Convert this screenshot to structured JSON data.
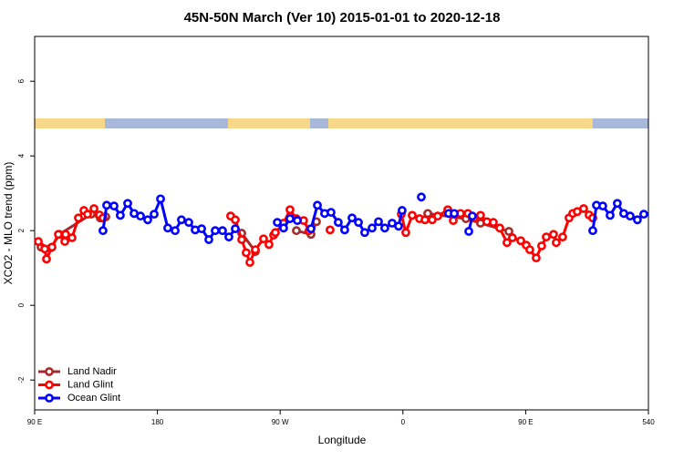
{
  "chart_data": {
    "type": "line",
    "title": "45N-50N March (Ver 10)   2015-01-01 to 2020-12-18",
    "x_label": "Longitude",
    "y_label": "XCO2 - MLO trend (ppm)",
    "xlim": [
      90,
      540
    ],
    "ylim": [
      -2.8,
      7.2
    ],
    "xticks": [
      {
        "value": 90,
        "label": "90 E"
      },
      180,
      {
        "value": 270,
        "label": "90 W"
      },
      {
        "value": 360,
        "label": "0"
      },
      {
        "value": 450,
        "label": "90 E"
      },
      540
    ],
    "yticks": [
      -2,
      0,
      2,
      4,
      6
    ],
    "legend": "bottom-left",
    "series": [
      {
        "name": "Land Nadir",
        "color": "#a52a2a",
        "x": [
          94.7,
          102.0,
          108.1,
          131.5,
          138.1,
          142.2,
          null,
          241.8,
          251.8,
          null,
          281.9,
          292.6,
          296.6,
          null,
          378.2,
          406.2,
          416.9,
          437.7
        ],
        "values": [
          1.56,
          1.54,
          1.9,
          2.44,
          2.34,
          2.37,
          null,
          1.93,
          1.44,
          null,
          2.0,
          1.9,
          2.24,
          null,
          2.46,
          2.32,
          2.2,
          1.98
        ]
      },
      {
        "name": "Land Glint",
        "color": "#ff0000",
        "x": [
          92.7,
          97.4,
          98.7,
          102.7,
          107.4,
          112.1,
          112.7,
          117.4,
          122.1,
          126.1,
          128.8,
          133.5,
          137.5,
          140.1,
          null,
          233.7,
          237.1,
          241.8,
          245.1,
          247.8,
          251.8,
          257.8,
          261.8,
          265.2,
          266.5,
          272.5,
          277.2,
          281.9,
          287.2,
          291.2,
          null,
          306.6,
          null,
          358.8,
          362.1,
          366.8,
          372.2,
          376.2,
          381.5,
          385.5,
          392.9,
          396.9,
          402.2,
          407.6,
          412.3,
          416.9,
          421.6,
          426.3,
          431.0,
          436.3,
          440.3,
          446.4,
          450.4,
          453.0,
          457.7,
          461.7,
          465.1,
          470.4,
          472.4,
          477.1,
          481.8,
          484.5,
          487.8,
          492.5,
          496.5,
          499.2
        ],
        "values": [
          1.71,
          1.51,
          1.24,
          1.56,
          1.9,
          1.71,
          1.9,
          1.81,
          2.34,
          2.54,
          2.44,
          2.59,
          2.42,
          2.34,
          null,
          2.39,
          2.29,
          1.76,
          1.41,
          1.15,
          1.49,
          1.78,
          1.63,
          1.88,
          1.95,
          2.2,
          2.56,
          2.32,
          2.27,
          2.0,
          null,
          2.02,
          null,
          2.44,
          1.95,
          2.41,
          2.32,
          2.29,
          2.29,
          2.39,
          2.56,
          2.27,
          2.46,
          2.46,
          2.34,
          2.41,
          2.24,
          2.22,
          2.07,
          1.68,
          1.81,
          1.73,
          1.61,
          1.49,
          1.27,
          1.59,
          1.83,
          1.9,
          1.68,
          1.83,
          2.34,
          2.46,
          2.51,
          2.59,
          2.42,
          2.34
        ]
      },
      {
        "name": "Ocean Glint",
        "color": "#0000ff",
        "x": [
          140.1,
          142.8,
          148.2,
          152.8,
          158.2,
          162.9,
          167.6,
          172.9,
          177.6,
          182.3,
          187.6,
          193.0,
          197.6,
          203.0,
          207.7,
          212.4,
          217.7,
          222.4,
          227.7,
          232.4,
          237.1,
          null,
          267.9,
          272.5,
          277.2,
          282.6,
          null,
          292.6,
          297.3,
          302.6,
          307.3,
          312.6,
          317.3,
          322.7,
          327.4,
          332.0,
          337.4,
          342.1,
          346.7,
          352.1,
          356.8,
          359.4,
          null,
          373.5,
          null,
          393.5,
          397.6,
          null,
          408.3,
          410.9,
          null,
          499.2,
          501.9,
          506.5,
          511.9,
          517.2,
          521.9,
          526.6,
          531.9,
          536.6
        ],
        "values": [
          2.0,
          2.68,
          2.66,
          2.41,
          2.73,
          2.46,
          2.39,
          2.29,
          2.44,
          2.85,
          2.07,
          2.0,
          2.29,
          2.22,
          2.02,
          2.05,
          1.76,
          2.0,
          2.0,
          1.83,
          2.05,
          null,
          2.22,
          2.07,
          2.32,
          2.27,
          null,
          2.05,
          2.68,
          2.46,
          2.49,
          2.22,
          2.02,
          2.34,
          2.22,
          1.95,
          2.07,
          2.24,
          2.07,
          2.2,
          2.12,
          2.54,
          null,
          2.9,
          null,
          2.46,
          2.46,
          null,
          1.98,
          2.39,
          null,
          2.0,
          2.68,
          2.66,
          2.41,
          2.73,
          2.46,
          2.39,
          2.29,
          2.44
        ]
      }
    ]
  }
}
